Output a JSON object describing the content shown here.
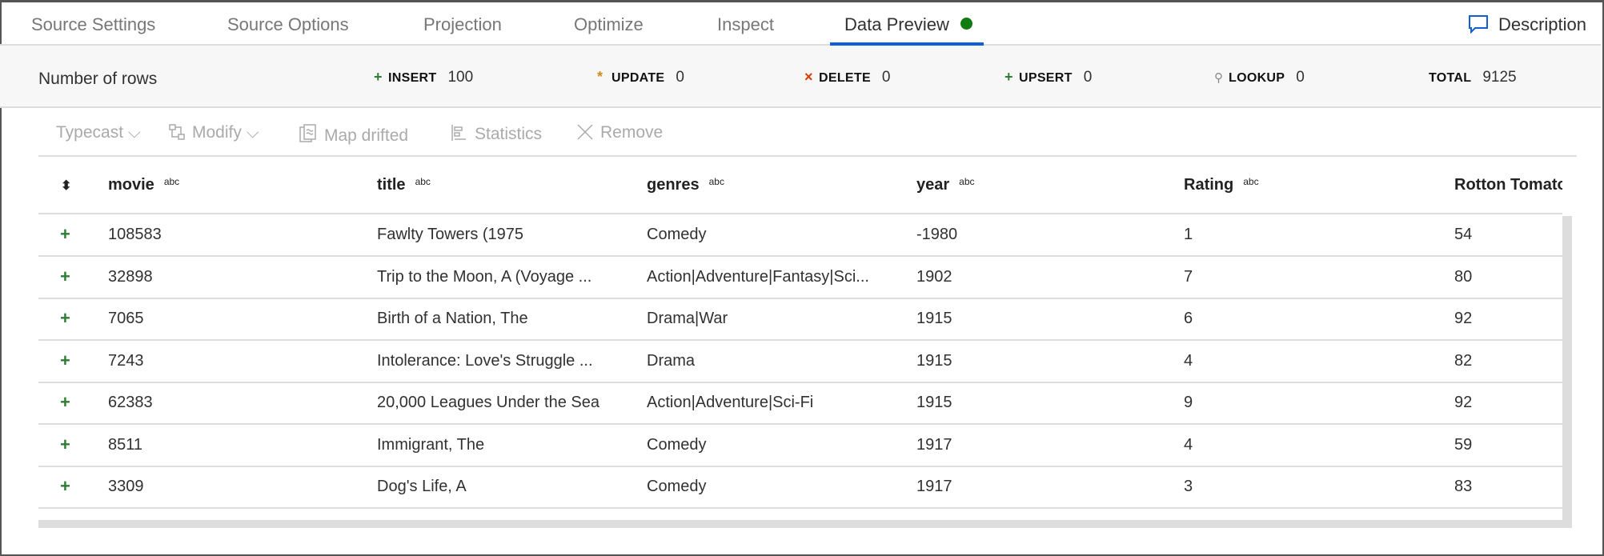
{
  "tabs": [
    {
      "label": "Source Settings"
    },
    {
      "label": "Source Options"
    },
    {
      "label": "Projection"
    },
    {
      "label": "Optimize"
    },
    {
      "label": "Inspect"
    },
    {
      "label": "Data Preview",
      "active": true
    }
  ],
  "description_label": "Description",
  "stats": {
    "label": "Number of rows",
    "items": [
      {
        "name": "INSERT",
        "value": "100",
        "icon": "plus-icon",
        "color": "#2e7d32"
      },
      {
        "name": "UPDATE",
        "value": "0",
        "icon": "asterisk-icon",
        "color": "#d08a1a"
      },
      {
        "name": "DELETE",
        "value": "0",
        "icon": "x-icon",
        "color": "#d83b01"
      },
      {
        "name": "UPSERT",
        "value": "0",
        "icon": "upsert-icon",
        "color": "#2e7d32"
      },
      {
        "name": "LOOKUP",
        "value": "0",
        "icon": "search-icon",
        "color": "#888888"
      },
      {
        "name": "TOTAL",
        "value": "9125"
      }
    ]
  },
  "toolbar": {
    "typecast": "Typecast",
    "modify": "Modify",
    "map_drifted": "Map drifted",
    "statistics": "Statistics",
    "remove": "Remove"
  },
  "columns": [
    {
      "name": "movie",
      "type": "abc"
    },
    {
      "name": "title",
      "type": "abc"
    },
    {
      "name": "genres",
      "type": "abc"
    },
    {
      "name": "year",
      "type": "abc"
    },
    {
      "name": "Rating",
      "type": "abc"
    },
    {
      "name": "Rotton Tomato",
      "type": ""
    }
  ],
  "rows": [
    [
      "108583",
      "Fawlty Towers (1975",
      "Comedy",
      "-1980",
      "1",
      "54"
    ],
    [
      "32898",
      "Trip to the Moon, A (Voyage ...",
      "Action|Adventure|Fantasy|Sci...",
      "1902",
      "7",
      "80"
    ],
    [
      "7065",
      "Birth of a Nation, The",
      "Drama|War",
      "1915",
      "6",
      "92"
    ],
    [
      "7243",
      "Intolerance: Love's Struggle ...",
      "Drama",
      "1915",
      "4",
      "82"
    ],
    [
      "62383",
      "20,000 Leagues Under the Sea",
      "Action|Adventure|Sci-Fi",
      "1915",
      "9",
      "92"
    ],
    [
      "8511",
      "Immigrant, The",
      "Comedy",
      "1917",
      "4",
      "59"
    ],
    [
      "3309",
      "Dog's Life, A",
      "Comedy",
      "1917",
      "3",
      "83"
    ]
  ],
  "row_marker": "+",
  "sort_icon": "sort-icon",
  "accent": "#0f5fd6",
  "status_color": "#107c10"
}
